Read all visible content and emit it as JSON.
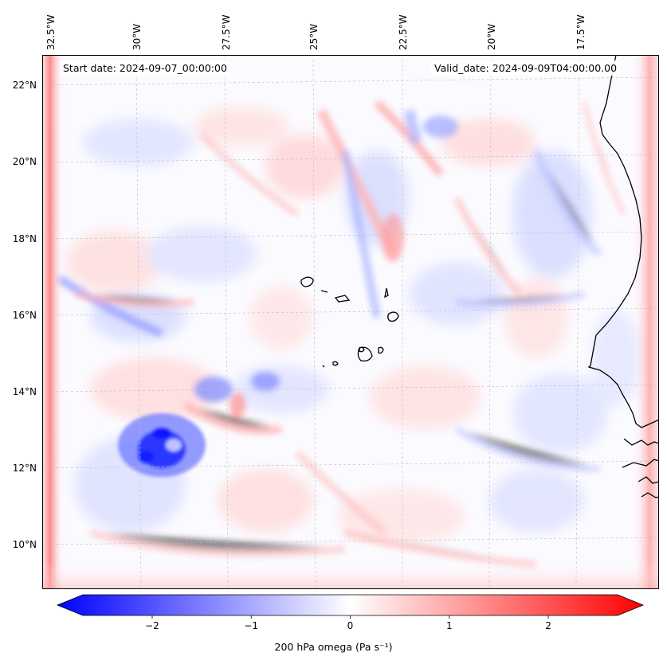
{
  "map": {
    "start_date": "Start date: 2024-09-07_00:00:00",
    "valid_date": "Valid_date: 2024-09-09T04:00:00.00",
    "lon_labels": [
      "32.5°W",
      "30°W",
      "27.5°W",
      "25°W",
      "22.5°W",
      "20°W",
      "17.5°W"
    ],
    "lat_labels": [
      "22°N",
      "20°N",
      "18°N",
      "16°N",
      "14°N",
      "12°N",
      "10°N"
    ]
  },
  "colorbar": {
    "label": "200 hPa omega (Pa s⁻¹)",
    "ticks": [
      "−2",
      "−1",
      "0",
      "1",
      "2"
    ],
    "range": [
      -2.7,
      2.7
    ],
    "tick_values": [
      -2,
      -1,
      0,
      1,
      2
    ],
    "low_color": "#0000ff",
    "mid_color": "#ffffff",
    "high_color": "#ff0000"
  }
}
